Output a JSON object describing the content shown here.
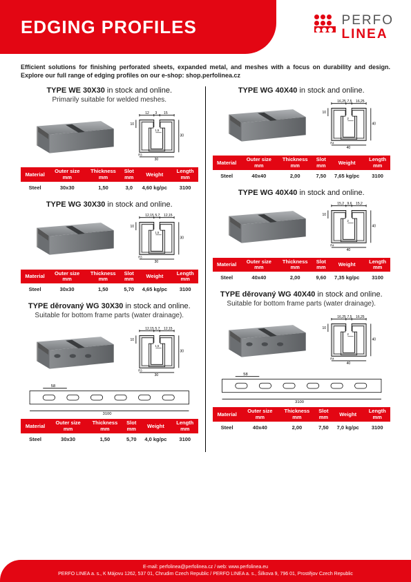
{
  "header": {
    "title": "EDGING PROFILES"
  },
  "logo": {
    "line1": "PERFO",
    "line2": "LINEA"
  },
  "intro": "Efficient solutions for finishing perforated sheets, expanded metal, and meshes with a focus on durability and design. Explore our full range of edging profiles on our e-shop: shop.perfolinea.cz",
  "blocks": [
    {
      "title_bold": "TYPE WE 30X30",
      "title_rest": " in stock and online.",
      "subtitle": "Primarily suitable for welded meshes.",
      "dim_top_left": "12",
      "dim_top_mid": "3",
      "dim_top_right": "15",
      "dim_side": "10",
      "dim_inner": "1,5",
      "dim_bottom": "30",
      "dim_r": "R3",
      "dim_h": "30",
      "table": {
        "material": "Steel",
        "outer": "30x30",
        "thick": "1,50",
        "slot": "3,0",
        "weight": "4,60 kg/pc",
        "length": "3100"
      }
    },
    {
      "title_bold": "TYPE WG 40X40",
      "title_rest": " in stock and online.",
      "subtitle": "",
      "dim_top_left": "16,25",
      "dim_top_mid": "7,5",
      "dim_top_right": "16,25",
      "dim_side": "10",
      "dim_inner": "2",
      "dim_bottom": "40",
      "dim_r": "R4",
      "dim_h": "40",
      "table": {
        "material": "Steel",
        "outer": "40x40",
        "thick": "2,00",
        "slot": "7,50",
        "weight": "7,65 kg/pc",
        "length": "3100"
      }
    },
    {
      "title_bold": "TYPE WG 30X30",
      "title_rest": " in stock and online.",
      "subtitle": "",
      "dim_top_left": "12,15",
      "dim_top_mid": "5,7",
      "dim_top_right": "12,15",
      "dim_side": "10",
      "dim_inner": "1,5",
      "dim_bottom": "30",
      "dim_r": "R3",
      "dim_h": "30",
      "table": {
        "material": "Steel",
        "outer": "30x30",
        "thick": "1,50",
        "slot": "5,70",
        "weight": "4,65 kg/pc",
        "length": "3100"
      }
    },
    {
      "title_bold": "TYPE WG 40X40",
      "title_rest": " in stock and online.",
      "subtitle": "",
      "dim_top_left": "15,2",
      "dim_top_mid": "9,6",
      "dim_top_right": "15,2",
      "dim_side": "10",
      "dim_inner": "2",
      "dim_bottom": "40",
      "dim_r": "R4",
      "dim_h": "40",
      "table": {
        "material": "Steel",
        "outer": "40x40",
        "thick": "2,00",
        "slot": "9,60",
        "weight": "7,35 kg/pc",
        "length": "3100"
      }
    },
    {
      "title_bold": "TYPE děrovaný WG 30X30",
      "title_rest": " in stock and online.",
      "subtitle": "Suitable for bottom frame parts (water drainage).",
      "dim_top_left": "12,15",
      "dim_top_mid": "5,7",
      "dim_top_right": "12,15",
      "dim_side": "10",
      "dim_inner": "1,5",
      "dim_bottom": "30",
      "dim_r": "R3",
      "dim_h": "30",
      "plan_pitch": "58",
      "plan_len": "3100",
      "table": {
        "material": "Steel",
        "outer": "30x30",
        "thick": "1,50",
        "slot": "5,70",
        "weight": "4,0 kg/pc",
        "length": "3100"
      }
    },
    {
      "title_bold": "TYPE děrovaný WG 40X40",
      "title_rest": " in stock and online.",
      "subtitle": "Suitable for bottom frame parts (water drainage).",
      "dim_top_left": "16,25",
      "dim_top_mid": "7,5",
      "dim_top_right": "16,25",
      "dim_side": "10",
      "dim_inner": "2",
      "dim_bottom": "40",
      "dim_r": "R4",
      "dim_h": "40",
      "plan_pitch": "58",
      "plan_len": "3100",
      "table": {
        "material": "Steel",
        "outer": "40x40",
        "thick": "2,00",
        "slot": "7,50",
        "weight": "7,0 kg/pc",
        "length": "3100"
      }
    }
  ],
  "table_headers": {
    "material": "Material",
    "outer": "Outer size\nmm",
    "thick": "Thickness\nmm",
    "slot": "Slot\nmm",
    "weight": "Weight",
    "length": "Length\nmm"
  },
  "footer": {
    "line1": "E-mail: perfolinea@perfolinea.cz / web: www.perfolinea.eu",
    "line2": "PERFO LINEA a. s., K Májovu 1262, 537 01, Chrudim Czech Republic / PERFO LINEA a. s., Šilkova 9, 796 01, Prostějov Czech Republic"
  },
  "colors": {
    "brand": "#e30613",
    "steel": "#8a8d90",
    "steelDark": "#6b6e71"
  }
}
